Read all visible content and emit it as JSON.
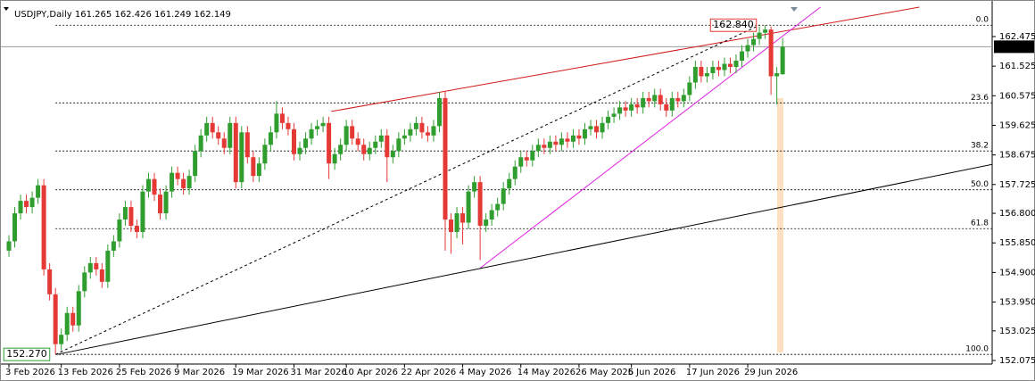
{
  "chart_data": {
    "type": "candlestick",
    "title": "USDJPY,Daily",
    "up_color": "#2f9e2f",
    "down_color": "#e53935",
    "ylim": [
      151.96,
      163.42
    ],
    "yticks": [
      162.475,
      161.525,
      160.575,
      159.625,
      158.675,
      157.725,
      {
        "value": 156.8,
        "label": "156.800"
      },
      {
        "value": 155.85,
        "label": "155.850"
      },
      {
        "value": 154.9,
        "label": "154.900"
      },
      {
        "value": 153.95,
        "label": "153.950"
      },
      153.025,
      152.075
    ],
    "x_labels": [
      {
        "index": 0,
        "label": "3 Feb 2026"
      },
      {
        "index": 9,
        "label": "13 Feb 2026"
      },
      {
        "index": 19,
        "label": "25 Feb 2026"
      },
      {
        "index": 29,
        "label": "9 Mar 2026"
      },
      {
        "index": 39,
        "label": "19 Mar 2026"
      },
      {
        "index": 49,
        "label": "31 Mar 2026"
      },
      {
        "index": 58,
        "label": "10 Apr 2026"
      },
      {
        "index": 68,
        "label": "22 Apr 2026"
      },
      {
        "index": 78,
        "label": "4 May 2026"
      },
      {
        "index": 88,
        "label": "14 May 2026"
      },
      {
        "index": 98,
        "label": "26 May 2026"
      },
      {
        "index": 107,
        "label": "5 Jun 2026"
      },
      {
        "index": 117,
        "label": "17 Jun 2026"
      },
      {
        "index": 127,
        "label": "29 Jun 2026"
      }
    ],
    "ohlc": [
      [
        155.6,
        156.1,
        155.4,
        155.9
      ],
      [
        155.9,
        157.0,
        155.7,
        156.8
      ],
      [
        156.8,
        157.4,
        156.6,
        157.2
      ],
      [
        157.2,
        157.4,
        156.8,
        157.0
      ],
      [
        157.0,
        157.5,
        156.8,
        157.3
      ],
      [
        157.3,
        157.9,
        157.1,
        157.7
      ],
      [
        157.7,
        157.9,
        154.8,
        155.0
      ],
      [
        155.0,
        155.2,
        154.0,
        154.2
      ],
      [
        154.2,
        154.4,
        152.27,
        152.6
      ],
      [
        152.6,
        153.1,
        152.4,
        152.9
      ],
      [
        152.9,
        153.8,
        152.7,
        153.6
      ],
      [
        153.6,
        153.8,
        153.0,
        153.2
      ],
      [
        153.2,
        154.5,
        153.0,
        154.3
      ],
      [
        154.3,
        155.1,
        154.1,
        154.9
      ],
      [
        154.9,
        155.4,
        154.7,
        155.2
      ],
      [
        155.2,
        155.4,
        154.8,
        155.0
      ],
      [
        155.0,
        155.2,
        154.4,
        154.6
      ],
      [
        154.6,
        155.8,
        154.4,
        155.6
      ],
      [
        155.6,
        156.1,
        155.4,
        155.9
      ],
      [
        155.9,
        156.8,
        155.7,
        156.6
      ],
      [
        156.6,
        157.2,
        156.4,
        157.0
      ],
      [
        157.0,
        157.2,
        156.2,
        156.4
      ],
      [
        156.4,
        156.6,
        156.0,
        156.2
      ],
      [
        156.2,
        157.7,
        156.0,
        157.5
      ],
      [
        157.5,
        158.1,
        157.3,
        157.9
      ],
      [
        157.9,
        158.1,
        157.2,
        157.4
      ],
      [
        157.4,
        157.6,
        156.6,
        156.8
      ],
      [
        156.8,
        157.7,
        156.6,
        157.5
      ],
      [
        157.5,
        158.3,
        157.3,
        158.1
      ],
      [
        158.1,
        158.3,
        157.7,
        157.9
      ],
      [
        157.9,
        158.1,
        157.4,
        157.6
      ],
      [
        157.6,
        158.2,
        157.4,
        158.0
      ],
      [
        158.0,
        159.0,
        157.8,
        158.8
      ],
      [
        158.8,
        159.5,
        158.6,
        159.3
      ],
      [
        159.3,
        159.9,
        159.1,
        159.7
      ],
      [
        159.7,
        159.9,
        159.2,
        159.4
      ],
      [
        159.4,
        159.6,
        159.0,
        159.2
      ],
      [
        159.2,
        159.4,
        158.7,
        158.9
      ],
      [
        158.9,
        159.9,
        158.7,
        159.7
      ],
      [
        159.7,
        159.9,
        157.6,
        157.8
      ],
      [
        157.8,
        159.6,
        157.6,
        159.4
      ],
      [
        159.4,
        159.6,
        158.4,
        158.6
      ],
      [
        158.6,
        158.8,
        157.8,
        158.0
      ],
      [
        158.0,
        158.6,
        157.8,
        158.4
      ],
      [
        158.4,
        159.2,
        158.2,
        159.0
      ],
      [
        159.0,
        159.6,
        158.8,
        159.4
      ],
      [
        159.4,
        160.4,
        159.2,
        160.0
      ],
      [
        160.0,
        160.2,
        159.5,
        159.7
      ],
      [
        159.7,
        159.9,
        159.3,
        159.5
      ],
      [
        159.5,
        159.7,
        158.5,
        158.7
      ],
      [
        158.7,
        159.1,
        158.5,
        158.9
      ],
      [
        158.9,
        159.4,
        158.7,
        159.2
      ],
      [
        159.2,
        159.7,
        159.0,
        159.5
      ],
      [
        159.5,
        159.8,
        159.3,
        159.6
      ],
      [
        159.6,
        159.9,
        159.4,
        159.7
      ],
      [
        159.7,
        159.9,
        157.9,
        158.4
      ],
      [
        158.4,
        158.9,
        158.2,
        158.7
      ],
      [
        158.7,
        159.2,
        158.5,
        159.0
      ],
      [
        159.0,
        159.8,
        158.8,
        159.6
      ],
      [
        159.6,
        159.8,
        159.0,
        159.2
      ],
      [
        159.2,
        159.4,
        158.8,
        159.0
      ],
      [
        159.0,
        159.2,
        158.5,
        158.7
      ],
      [
        158.7,
        159.1,
        158.5,
        158.9
      ],
      [
        158.9,
        159.3,
        158.7,
        159.1
      ],
      [
        159.1,
        159.5,
        158.9,
        159.3
      ],
      [
        159.3,
        159.5,
        157.8,
        158.6
      ],
      [
        158.6,
        159.0,
        158.4,
        158.8
      ],
      [
        158.8,
        159.4,
        158.6,
        159.2
      ],
      [
        159.2,
        159.5,
        159.0,
        159.3
      ],
      [
        159.3,
        159.7,
        159.1,
        159.5
      ],
      [
        159.5,
        159.9,
        159.3,
        159.7
      ],
      [
        159.7,
        159.9,
        159.2,
        159.4
      ],
      [
        159.4,
        159.6,
        159.1,
        159.3
      ],
      [
        159.3,
        159.8,
        159.1,
        159.6
      ],
      [
        159.6,
        160.7,
        159.4,
        160.5
      ],
      [
        160.5,
        160.7,
        155.6,
        156.6
      ],
      [
        156.6,
        156.8,
        155.5,
        156.2
      ],
      [
        156.2,
        157.0,
        156.0,
        156.8
      ],
      [
        156.8,
        157.0,
        155.8,
        156.5
      ],
      [
        156.5,
        157.7,
        156.3,
        157.5
      ],
      [
        157.5,
        158.0,
        157.3,
        157.8
      ],
      [
        157.8,
        158.0,
        155.3,
        156.4
      ],
      [
        156.4,
        156.8,
        156.2,
        156.6
      ],
      [
        156.6,
        157.1,
        156.4,
        156.9
      ],
      [
        156.9,
        157.3,
        156.7,
        157.1
      ],
      [
        157.1,
        157.8,
        156.9,
        157.6
      ],
      [
        157.6,
        158.1,
        157.4,
        157.9
      ],
      [
        157.9,
        158.5,
        157.7,
        158.3
      ],
      [
        158.3,
        158.8,
        158.1,
        158.6
      ],
      [
        158.6,
        158.8,
        158.3,
        158.5
      ],
      [
        158.5,
        159.0,
        158.3,
        158.8
      ],
      [
        158.8,
        159.2,
        158.6,
        159.0
      ],
      [
        159.0,
        159.2,
        158.7,
        158.9
      ],
      [
        158.9,
        159.3,
        158.7,
        159.1
      ],
      [
        159.1,
        159.3,
        158.8,
        159.0
      ],
      [
        159.0,
        159.4,
        158.8,
        159.2
      ],
      [
        159.2,
        159.4,
        158.9,
        159.1
      ],
      [
        159.1,
        159.5,
        158.9,
        159.3
      ],
      [
        159.3,
        159.5,
        159.0,
        159.2
      ],
      [
        159.2,
        159.7,
        159.0,
        159.5
      ],
      [
        159.5,
        159.8,
        159.3,
        159.6
      ],
      [
        159.6,
        159.8,
        159.2,
        159.4
      ],
      [
        159.4,
        159.9,
        159.2,
        159.7
      ],
      [
        159.7,
        160.1,
        159.5,
        159.9
      ],
      [
        159.9,
        160.2,
        159.7,
        160.0
      ],
      [
        160.0,
        160.4,
        159.8,
        160.2
      ],
      [
        160.2,
        160.4,
        159.9,
        160.1
      ],
      [
        160.1,
        160.5,
        159.9,
        160.3
      ],
      [
        160.3,
        160.5,
        160.0,
        160.2
      ],
      [
        160.2,
        160.7,
        160.0,
        160.5
      ],
      [
        160.5,
        160.7,
        160.2,
        160.4
      ],
      [
        160.4,
        160.8,
        160.2,
        160.6
      ],
      [
        160.6,
        160.8,
        160.1,
        160.3
      ],
      [
        160.3,
        160.5,
        159.9,
        160.1
      ],
      [
        160.1,
        160.7,
        159.9,
        160.5
      ],
      [
        160.5,
        160.7,
        160.2,
        160.4
      ],
      [
        160.4,
        160.8,
        160.2,
        160.6
      ],
      [
        160.6,
        161.2,
        160.4,
        161.0
      ],
      [
        161.0,
        161.7,
        160.8,
        161.5
      ],
      [
        161.5,
        161.7,
        161.0,
        161.2
      ],
      [
        161.2,
        161.5,
        161.0,
        161.3
      ],
      [
        161.3,
        161.7,
        161.1,
        161.5
      ],
      [
        161.5,
        161.7,
        161.2,
        161.4
      ],
      [
        161.4,
        161.8,
        161.2,
        161.6
      ],
      [
        161.6,
        161.8,
        161.3,
        161.5
      ],
      [
        161.5,
        161.9,
        161.3,
        161.7
      ],
      [
        161.7,
        162.2,
        161.5,
        162.0
      ],
      [
        162.0,
        162.4,
        161.8,
        162.2
      ],
      [
        162.2,
        162.6,
        162.0,
        162.4
      ],
      [
        162.4,
        162.8,
        162.2,
        162.6
      ],
      [
        162.6,
        162.84,
        162.4,
        162.7
      ],
      [
        162.7,
        162.8,
        160.6,
        161.2
      ],
      [
        161.2,
        161.5,
        160.3,
        161.3
      ],
      [
        161.265,
        162.426,
        161.249,
        162.149
      ]
    ],
    "fibo": {
      "high": {
        "value": 162.84,
        "label": "162.840"
      },
      "low": {
        "value": 152.27,
        "label": "152.270"
      },
      "start_index": 8,
      "levels": [
        {
          "value": 0,
          "label": "0.0"
        },
        23.6,
        38.2,
        {
          "value": 50,
          "label": "50.0"
        },
        61.8,
        {
          "value": 100,
          "label": "100.0"
        }
      ]
    },
    "trendlines": [
      {
        "color": "#d01818",
        "style": "solid",
        "x": [
          55.4,
          156.5
        ],
        "y": [
          160.07,
          163.42
        ]
      },
      {
        "color": "#e020e0",
        "style": "solid",
        "x": [
          81,
          139.5
        ],
        "y": [
          155.04,
          163.42
        ]
      },
      {
        "color": "#000000",
        "style": "solid",
        "x": [
          8.3,
          169.8
        ],
        "y": [
          152.27,
          158.4
        ]
      },
      {
        "color": "#000000",
        "style": "dashed",
        "x": [
          8,
          129
        ],
        "y": [
          152.27,
          162.84
        ]
      }
    ]
  }
}
